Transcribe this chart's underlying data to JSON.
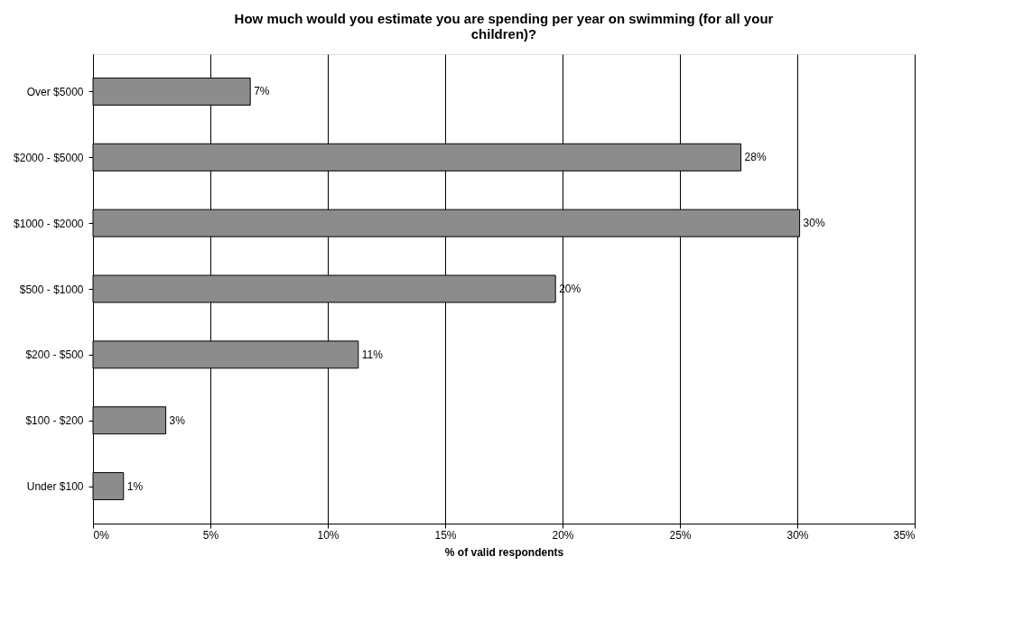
{
  "chart_data": {
    "type": "bar",
    "orientation": "horizontal",
    "title": "How much would you estimate you are spending per year on swimming (for all your children)?",
    "xlabel": "% of valid respondents",
    "categories": [
      "Over $5000",
      "$2000 - $5000",
      "$1000 - $2000",
      "$500 - $1000",
      "$200 - $500",
      "$100 - $200",
      "Under $100"
    ],
    "values": [
      6.7,
      27.6,
      30.1,
      19.7,
      11.3,
      3.1,
      1.3
    ],
    "value_labels": [
      "7%",
      "28%",
      "30%",
      "20%",
      "11%",
      "3%",
      "1%"
    ],
    "color": "#8c8c8c",
    "xlim": [
      0,
      35
    ],
    "xticks": [
      {
        "value": 0,
        "label": "0%"
      },
      {
        "value": 5,
        "label": "5%"
      },
      {
        "value": 10,
        "label": "10%"
      },
      {
        "value": 15,
        "label": "15%"
      },
      {
        "value": 20,
        "label": "20%"
      },
      {
        "value": 25,
        "label": "25%"
      },
      {
        "value": 30,
        "label": "30%"
      },
      {
        "value": 35,
        "label": "35%"
      }
    ],
    "grid": "x",
    "legend": false
  }
}
